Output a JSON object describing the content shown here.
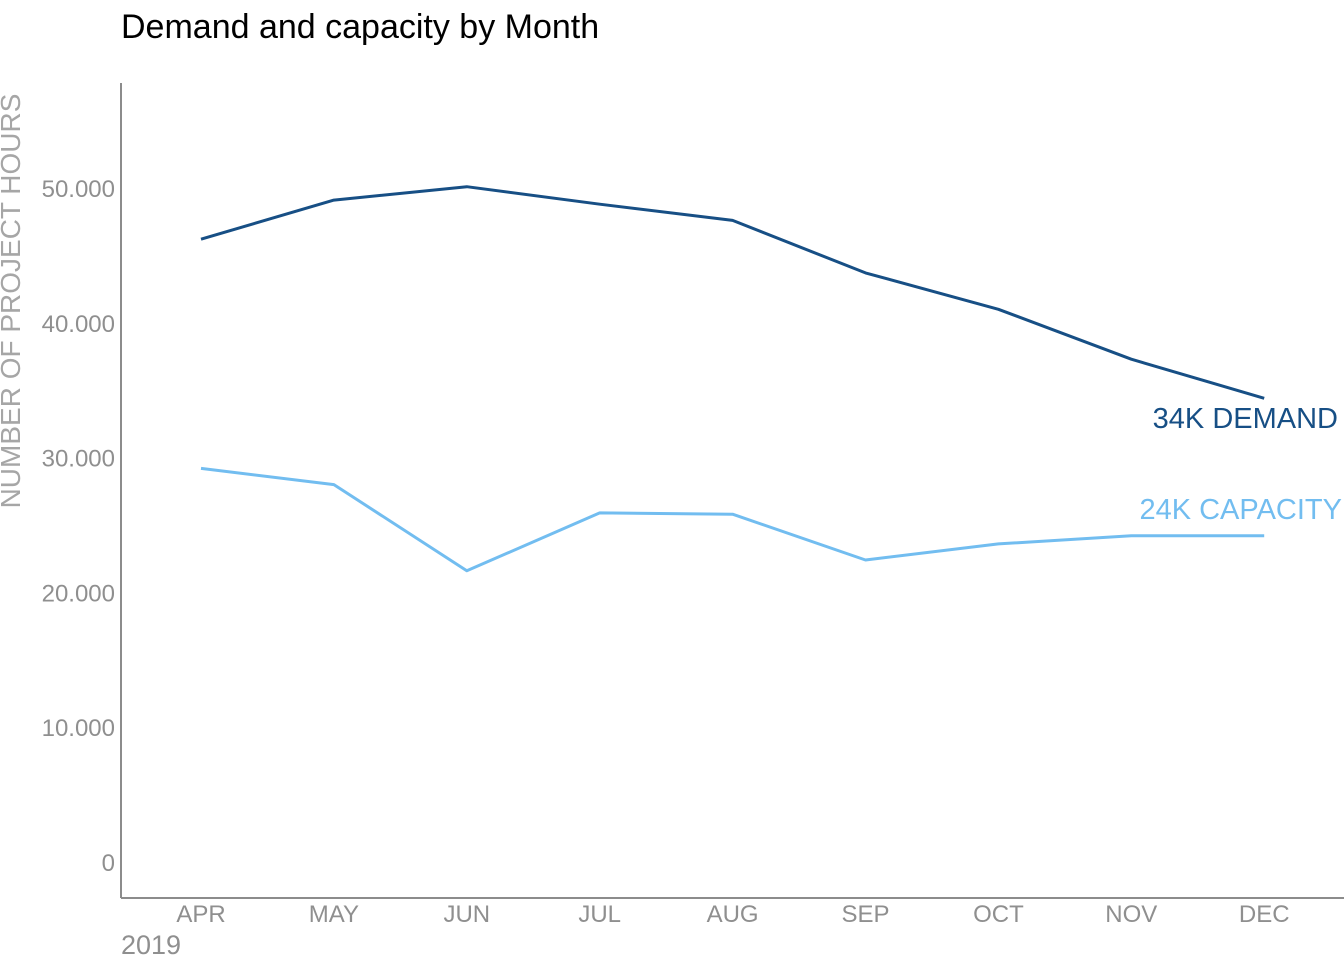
{
  "chart_data": {
    "type": "line",
    "title": "Demand and capacity by Month",
    "xlabel": "",
    "ylabel": "NUMBER OF PROJECT HOURS",
    "x_group_label": "2019",
    "categories": [
      "APR",
      "MAY",
      "JUN",
      "JUL",
      "AUG",
      "SEP",
      "OCT",
      "NOV",
      "DEC"
    ],
    "ylim": [
      0,
      58000
    ],
    "yticks": [
      0,
      10000,
      20000,
      30000,
      40000,
      50000
    ],
    "ytick_labels": [
      "0",
      "10.000",
      "20.000",
      "30.000",
      "40.000",
      "50.000"
    ],
    "grid": false,
    "series": [
      {
        "key": "demand",
        "end_label": "34K DEMAND",
        "color": "#174f85",
        "values": [
          46200,
          49100,
          50100,
          48800,
          47600,
          43700,
          41000,
          37300,
          34400
        ]
      },
      {
        "key": "capacity",
        "end_label": "24K CAPACITY",
        "color": "#72bdf0",
        "values": [
          29200,
          28000,
          21600,
          25900,
          25800,
          22400,
          23600,
          24200,
          24200
        ]
      }
    ],
    "axis_color": "#8c8c8c",
    "label_color": "#8f8f8f"
  }
}
